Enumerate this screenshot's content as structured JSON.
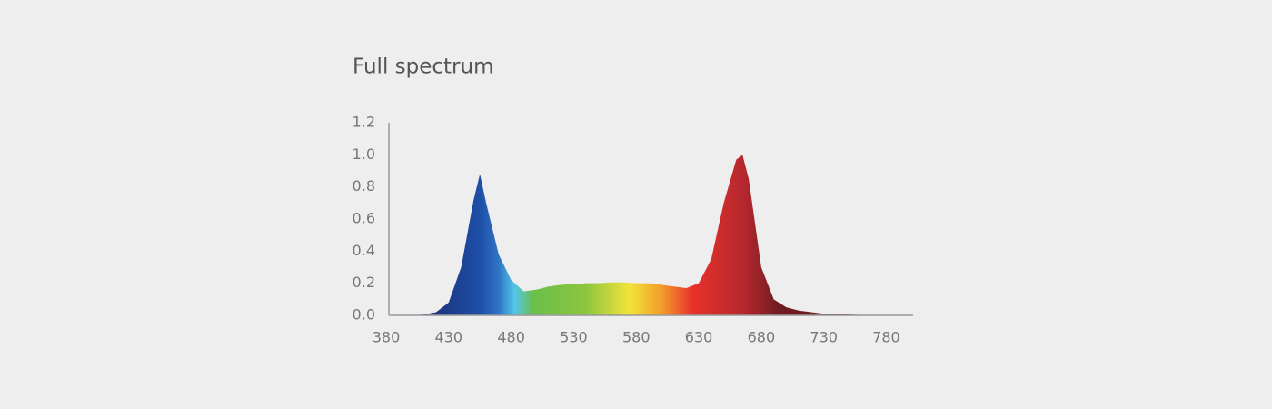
{
  "chart_data": {
    "type": "area",
    "title": "Full spectrum",
    "x": [
      380,
      390,
      400,
      410,
      420,
      430,
      440,
      450,
      455,
      460,
      470,
      480,
      490,
      500,
      510,
      520,
      530,
      540,
      550,
      560,
      570,
      580,
      590,
      600,
      610,
      620,
      630,
      640,
      650,
      660,
      665,
      670,
      680,
      690,
      700,
      710,
      720,
      730,
      740,
      750,
      760,
      770,
      780,
      790,
      800
    ],
    "values": [
      0,
      0,
      0,
      0.005,
      0.02,
      0.08,
      0.3,
      0.72,
      0.88,
      0.7,
      0.38,
      0.22,
      0.15,
      0.16,
      0.18,
      0.19,
      0.195,
      0.2,
      0.2,
      0.205,
      0.205,
      0.2,
      0.2,
      0.19,
      0.18,
      0.17,
      0.2,
      0.35,
      0.7,
      0.97,
      1.0,
      0.85,
      0.3,
      0.1,
      0.05,
      0.03,
      0.02,
      0.01,
      0.008,
      0.005,
      0.003,
      0.002,
      0.001,
      0,
      0
    ],
    "xlim": [
      380,
      800
    ],
    "xticks": [
      380,
      430,
      480,
      530,
      580,
      630,
      680,
      730,
      780
    ],
    "ylim": [
      0,
      1.2
    ],
    "yticks": [
      {
        "value": 0,
        "label": "0.0"
      },
      0.2,
      0.4,
      0.6,
      0.8,
      {
        "value": 1,
        "label": "1.0"
      },
      1.2
    ]
  }
}
